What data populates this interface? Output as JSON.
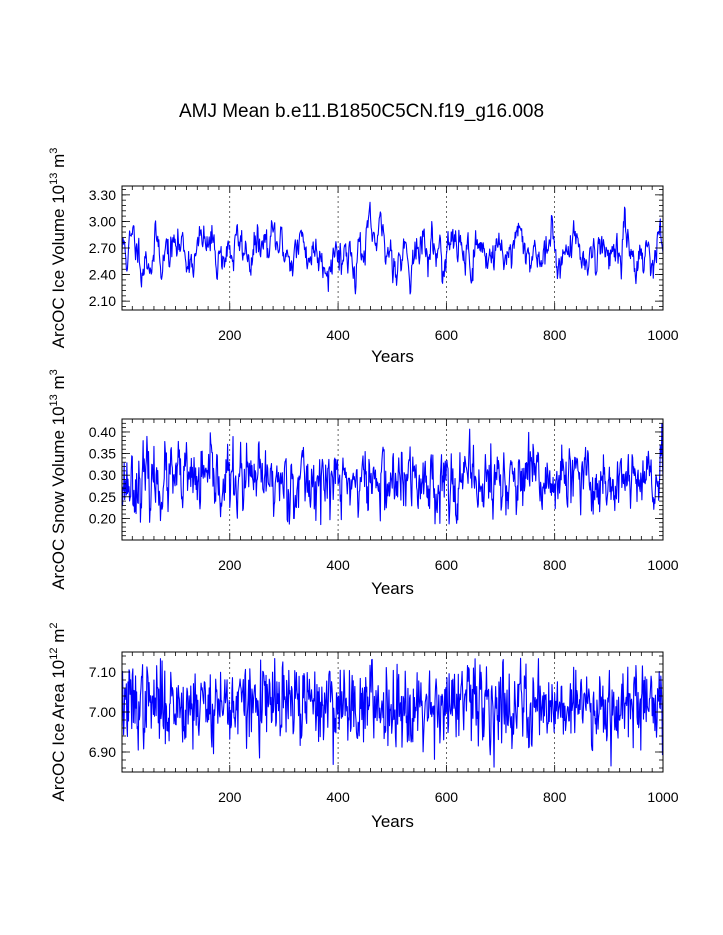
{
  "figure": {
    "title": "AMJ Mean b.e11.B1850C5CN.f19_g16.008"
  },
  "chart_data": [
    {
      "type": "line",
      "ylabel_main": "ArcOC Ice Volume 10",
      "ylabel_exp": "13",
      "ylabel_tail": " m",
      "ylabel_tail_exp": "3",
      "xlabel": "Years",
      "xlim": [
        1,
        1000
      ],
      "ylim": [
        2.0,
        3.4
      ],
      "yticks": [
        "3.30",
        "3.00",
        "2.70",
        "2.40",
        "2.10"
      ],
      "yticks_values": [
        3.3,
        3.0,
        2.7,
        2.4,
        2.1
      ],
      "xticks": [
        "200",
        "400",
        "600",
        "800",
        "1000"
      ],
      "xticks_values": [
        200,
        400,
        600,
        800,
        1000
      ],
      "grid_x": [
        200,
        400,
        600,
        800
      ],
      "line_color": "#0000ff",
      "series": {
        "name": "ArcOC Ice Volume",
        "x_start": 1,
        "x_end": 1000,
        "mean": 2.68,
        "std": 0.17,
        "min": 2.18,
        "max": 3.22,
        "smoothing": 0.82,
        "seed": 11
      }
    },
    {
      "type": "line",
      "ylabel_main": "ArcOC Snow Volume 10",
      "ylabel_exp": "13",
      "ylabel_tail": " m",
      "ylabel_tail_exp": "3",
      "xlabel": "Years",
      "xlim": [
        1,
        1000
      ],
      "ylim": [
        0.15,
        0.43
      ],
      "yticks": [
        "0.40",
        "0.35",
        "0.30",
        "0.25",
        "0.20"
      ],
      "yticks_values": [
        0.4,
        0.35,
        0.3,
        0.25,
        0.2
      ],
      "xticks": [
        "200",
        "400",
        "600",
        "800",
        "1000"
      ],
      "xticks_values": [
        200,
        400,
        600,
        800,
        1000
      ],
      "grid_x": [
        200,
        400,
        600,
        800
      ],
      "line_color": "#0000ff",
      "series": {
        "name": "ArcOC Snow Volume",
        "x_start": 1,
        "x_end": 1000,
        "mean": 0.285,
        "std": 0.04,
        "min": 0.185,
        "max": 0.42,
        "smoothing": 0.45,
        "seed": 23
      }
    },
    {
      "type": "line",
      "ylabel_main": "ArcOC Ice Area 10",
      "ylabel_exp": "12",
      "ylabel_tail": " m",
      "ylabel_tail_exp": "2",
      "xlabel": "Years",
      "xlim": [
        1,
        1000
      ],
      "ylim": [
        6.85,
        7.15
      ],
      "yticks": [
        "7.10",
        "7.00",
        "6.90"
      ],
      "yticks_values": [
        7.1,
        7.0,
        6.9
      ],
      "xticks": [
        "200",
        "400",
        "600",
        "800",
        "1000"
      ],
      "xticks_values": [
        200,
        400,
        600,
        800,
        1000
      ],
      "grid_x": [
        200,
        400,
        600,
        800
      ],
      "line_color": "#0000ff",
      "series": {
        "name": "ArcOC Ice Area",
        "x_start": 1,
        "x_end": 1000,
        "mean": 7.02,
        "std": 0.05,
        "min": 6.855,
        "max": 7.135,
        "smoothing": 0.2,
        "seed": 37
      }
    }
  ]
}
